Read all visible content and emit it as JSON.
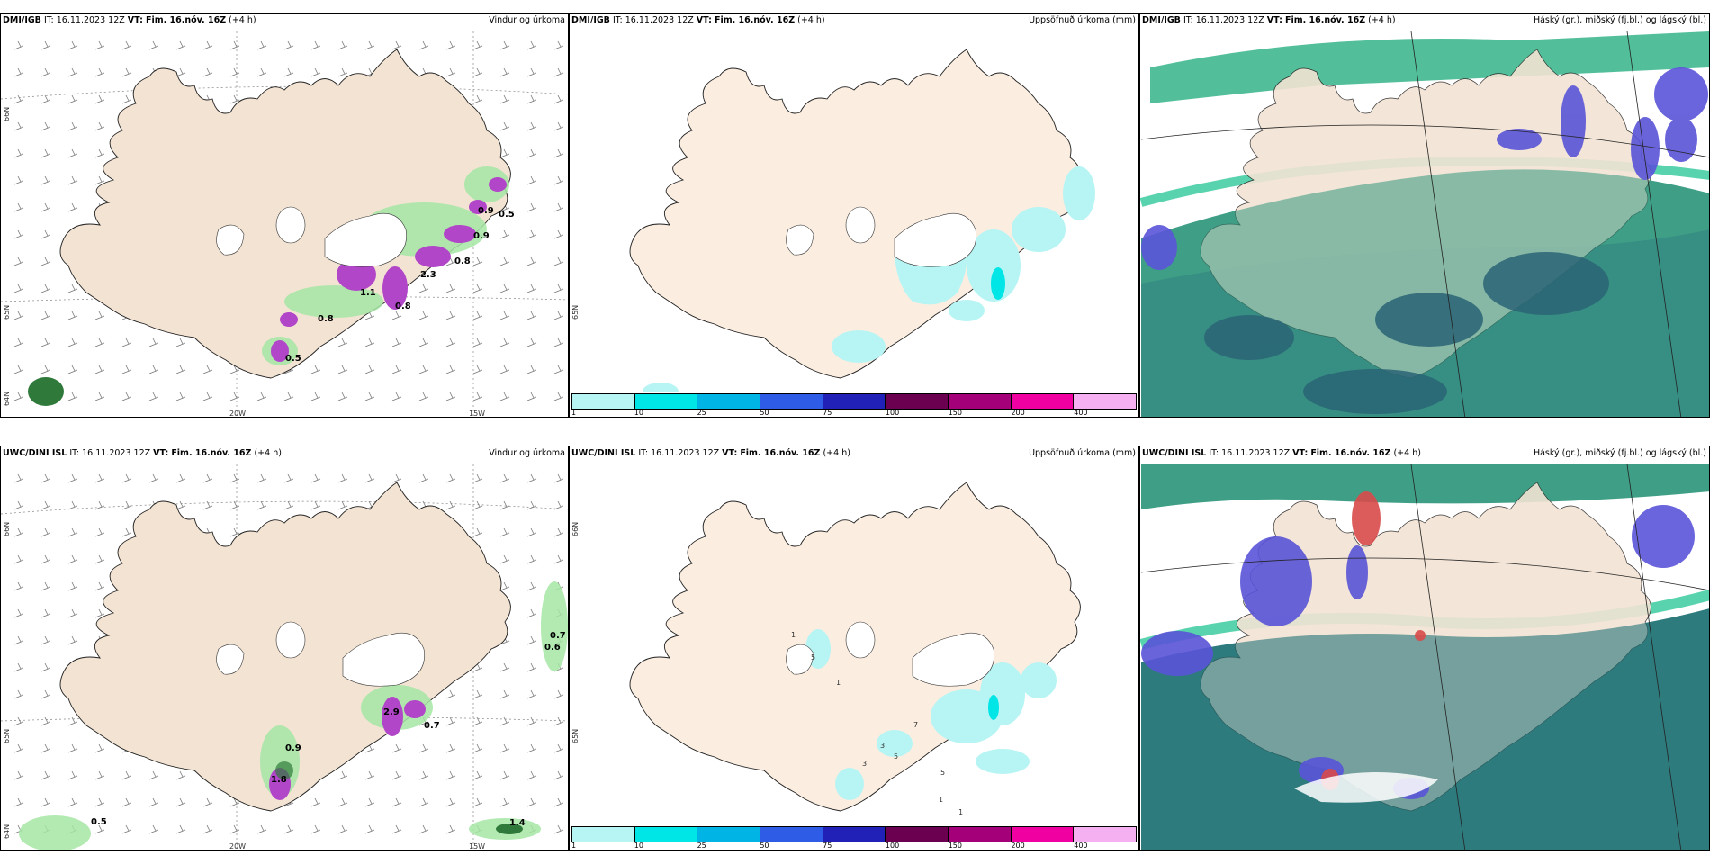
{
  "colors": {
    "land": "#f2e3d3",
    "land_right": "#fbeee1",
    "ocean_teal": "#2f8f85",
    "ocean_dark": "#2b6f78",
    "cloud_blue": "#5a54d8",
    "cloud_green": "#30c89a",
    "precip_green": "#a5e6a5",
    "precip_purple": "#b146c8",
    "accum_cyan": "#b7f4f4"
  },
  "panels": [
    {
      "id": "top-left",
      "model": "DMI/IGB",
      "it_label": "IT:",
      "it_value": "16.11.2023 12Z",
      "vt_label": "VT:",
      "vt_value": "Fim. 16.nóv. 16Z",
      "lead": "(+4 h)",
      "variable": "Vindur og úrkoma",
      "lat_labels": [
        "66N",
        "65N",
        "64N"
      ],
      "lon_labels": [
        "20W",
        "15W"
      ],
      "value_labels": [
        "0.9",
        "0.5",
        "0.9",
        "0.8",
        "0.8",
        "2.3",
        "1.1",
        "0.8",
        "0.5"
      ]
    },
    {
      "id": "top-middle",
      "model": "DMI/IGB",
      "it_label": "IT:",
      "it_value": "16.11.2023 12Z",
      "vt_label": "VT:",
      "vt_value": "Fim. 16.nóv. 16Z",
      "lead": "(+4 h)",
      "variable": "Uppsöfnuð úrkoma (mm)",
      "lat_labels": [
        "65N"
      ]
    },
    {
      "id": "top-right",
      "model": "DMI/IGB",
      "it_label": "IT:",
      "it_value": "16.11.2023 12Z",
      "vt_label": "VT:",
      "vt_value": "Fim. 16.nóv. 16Z",
      "lead": "(+4 h)",
      "variable": "Háský (gr.), miðský (fj.bl.) og lágský (bl.)"
    },
    {
      "id": "bottom-left",
      "model": "UWC/DINI ISL",
      "it_label": "IT:",
      "it_value": "16.11.2023 12Z",
      "vt_label": "VT:",
      "vt_value": "Fim. 16.nóv. 16Z",
      "lead": "(+4 h)",
      "variable": "Vindur og úrkoma",
      "lat_labels": [
        "66N",
        "65N",
        "64N"
      ],
      "lon_labels": [
        "20W",
        "15W"
      ],
      "value_labels": [
        "0.7",
        "0.6",
        "0.9",
        "0.7",
        "0.5",
        "1.4",
        "2.9",
        "1.8"
      ]
    },
    {
      "id": "bottom-middle",
      "model": "UWC/DINI ISL",
      "it_label": "IT:",
      "it_value": "16.11.2023 12Z",
      "vt_label": "VT:",
      "vt_value": "Fim. 16.nóv. 16Z",
      "lead": "(+4 h)",
      "variable": "Uppsöfnuð úrkoma (mm)",
      "lat_labels": [
        "65N",
        "66N"
      ],
      "value_labels": [
        "1",
        "5",
        "1",
        "3",
        "7",
        "3",
        "5",
        "5",
        "1",
        "1"
      ]
    },
    {
      "id": "bottom-right",
      "model": "UWC/DINI ISL",
      "it_label": "IT:",
      "it_value": "16.11.2023 12Z",
      "vt_label": "VT:",
      "vt_value": "Fim. 16.nóv. 16Z",
      "lead": "(+4 h)",
      "variable": "Háský (gr.), miðský (fj.bl.) og lágský (bl.)"
    }
  ],
  "colorbar": {
    "ticks": [
      "1",
      "10",
      "25",
      "50",
      "75",
      "100",
      "150",
      "200",
      "400"
    ],
    "colors": [
      "#b7f4f4",
      "#00e5e5",
      "#00b4e6",
      "#2f5ce6",
      "#2121b8",
      "#6b0050",
      "#a3007a",
      "#f000a0",
      "#f4b0f0"
    ]
  }
}
